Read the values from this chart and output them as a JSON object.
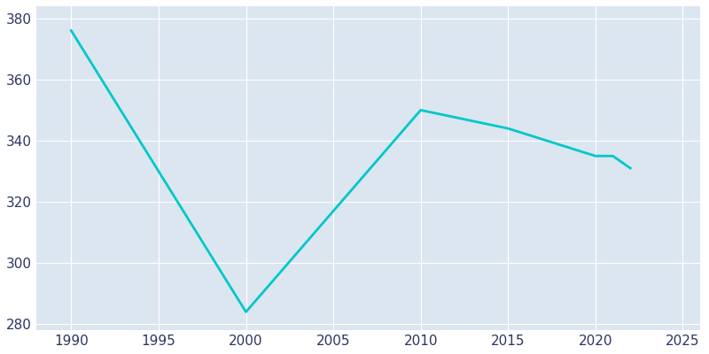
{
  "years": [
    1990,
    2000,
    2010,
    2015,
    2020,
    2021,
    2022
  ],
  "population": [
    376,
    284,
    350,
    344,
    335,
    335,
    331
  ],
  "line_color": "#00C8C8",
  "plot_bg_color": "#dce6f0",
  "fig_bg_color": "#ffffff",
  "xlim": [
    1988,
    2026
  ],
  "ylim": [
    278,
    384
  ],
  "xticks": [
    1990,
    1995,
    2000,
    2005,
    2010,
    2015,
    2020,
    2025
  ],
  "yticks": [
    280,
    300,
    320,
    340,
    360,
    380
  ],
  "grid_color": "#ffffff",
  "tick_label_color": "#2d3561",
  "linewidth": 2.0,
  "tick_fontsize": 11
}
